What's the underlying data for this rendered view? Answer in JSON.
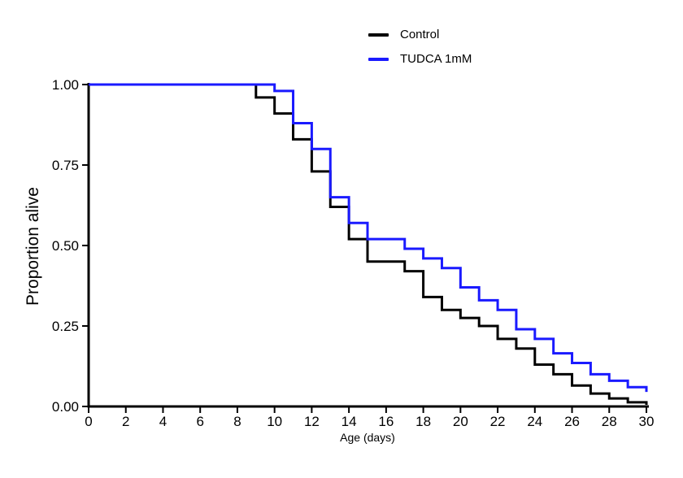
{
  "figure": {
    "background": "#ffffff",
    "axis_color": "#000000"
  },
  "chart_data": {
    "type": "line",
    "subtype": "kaplan-meier-step-survival",
    "title": "",
    "xlabel": "Age (days)",
    "ylabel": "Proportion alive",
    "xlim": [
      0,
      30
    ],
    "ylim": [
      0,
      1
    ],
    "xticks": [
      0,
      2,
      4,
      6,
      8,
      10,
      12,
      14,
      16,
      18,
      20,
      22,
      24,
      26,
      28,
      30
    ],
    "yticks": [
      {
        "value": 0.0,
        "label": "0.00"
      },
      {
        "value": 0.25,
        "label": "0.25"
      },
      {
        "value": 0.5,
        "label": "0.50"
      },
      {
        "value": 0.75,
        "label": "0.75"
      },
      {
        "value": 1.0,
        "label": "1.00"
      }
    ],
    "grid": false,
    "legend_position": "top-center",
    "series": [
      {
        "name": "Control",
        "color": "#000000",
        "steps_note": "each pair is [age_days, proportion_alive_after_drop_at_that_age]",
        "steps": [
          [
            0,
            1.0
          ],
          [
            9,
            0.96
          ],
          [
            10,
            0.91
          ],
          [
            11,
            0.83
          ],
          [
            12,
            0.73
          ],
          [
            13,
            0.62
          ],
          [
            14,
            0.52
          ],
          [
            15,
            0.45
          ],
          [
            17,
            0.42
          ],
          [
            18,
            0.34
          ],
          [
            19,
            0.3
          ],
          [
            20,
            0.275
          ],
          [
            21,
            0.25
          ],
          [
            22,
            0.21
          ],
          [
            23,
            0.18
          ],
          [
            24,
            0.13
          ],
          [
            25,
            0.1
          ],
          [
            26,
            0.065
          ],
          [
            27,
            0.04
          ],
          [
            28,
            0.025
          ],
          [
            29,
            0.013
          ],
          [
            30,
            0.005
          ]
        ]
      },
      {
        "name": "TUDCA 1mM",
        "color": "#1a1aff",
        "steps_note": "each pair is [age_days, proportion_alive_after_drop_at_that_age]",
        "steps": [
          [
            0,
            1.0
          ],
          [
            10,
            0.98
          ],
          [
            11,
            0.88
          ],
          [
            12,
            0.8
          ],
          [
            13,
            0.65
          ],
          [
            14,
            0.57
          ],
          [
            15,
            0.52
          ],
          [
            17,
            0.49
          ],
          [
            18,
            0.46
          ],
          [
            19,
            0.43
          ],
          [
            20,
            0.37
          ],
          [
            21,
            0.33
          ],
          [
            22,
            0.3
          ],
          [
            23,
            0.24
          ],
          [
            24,
            0.21
          ],
          [
            25,
            0.165
          ],
          [
            26,
            0.135
          ],
          [
            27,
            0.1
          ],
          [
            28,
            0.08
          ],
          [
            29,
            0.06
          ],
          [
            30,
            0.045
          ]
        ]
      }
    ]
  }
}
